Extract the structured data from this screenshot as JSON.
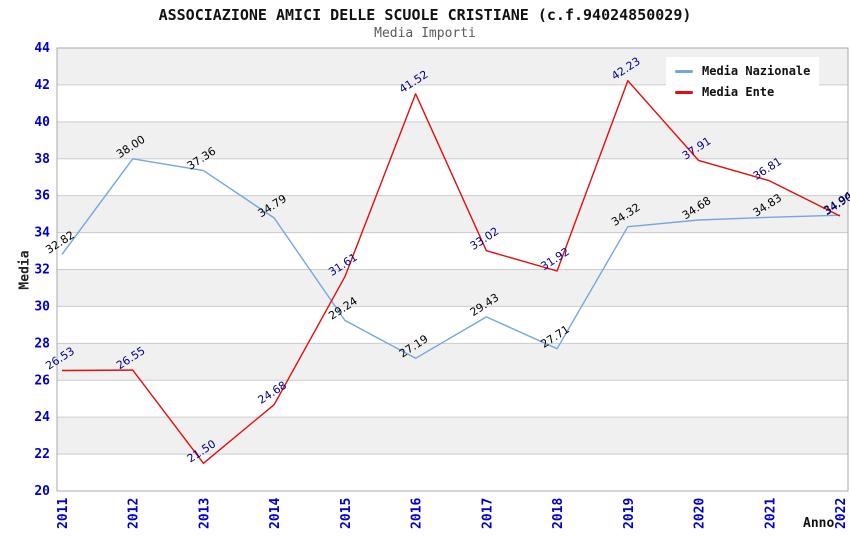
{
  "header": {
    "title": "ASSOCIAZIONE AMICI DELLE SCUOLE CRISTIANE (c.f.94024850029)",
    "subtitle": "Media Importi"
  },
  "chart_data": {
    "type": "line",
    "title": "ASSOCIAZIONE AMICI DELLE SCUOLE CRISTIANE (c.f.94024850029)",
    "subtitle": "Media Importi",
    "xlabel": "Anno",
    "ylabel": "Media",
    "x": [
      "2011",
      "2012",
      "2013",
      "2014",
      "2015",
      "2016",
      "2017",
      "2018",
      "2019",
      "2020",
      "2021",
      "2022"
    ],
    "series": [
      {
        "name": "Media Nazionale",
        "color": "#74a7df",
        "label_color": "#000000",
        "values": [
          32.82,
          38.0,
          37.36,
          34.79,
          29.24,
          27.19,
          29.43,
          27.71,
          34.32,
          34.68,
          34.83,
          34.94
        ]
      },
      {
        "name": "Media Ente",
        "color": "#e60d0d",
        "label_color": "#00008b",
        "values": [
          26.53,
          26.55,
          21.5,
          24.68,
          31.61,
          41.52,
          33.02,
          31.92,
          42.23,
          37.91,
          36.81,
          34.9
        ]
      }
    ],
    "ylim": [
      20,
      44
    ],
    "ytick_step": 2,
    "grid": "horizontal",
    "legend_position": "top-right",
    "colors": {
      "axis_tick_labels": "#0000cc",
      "band_shade": "#f0f0f0",
      "gridline": "#cccccc",
      "plot_border": "#aaaaaa"
    }
  }
}
